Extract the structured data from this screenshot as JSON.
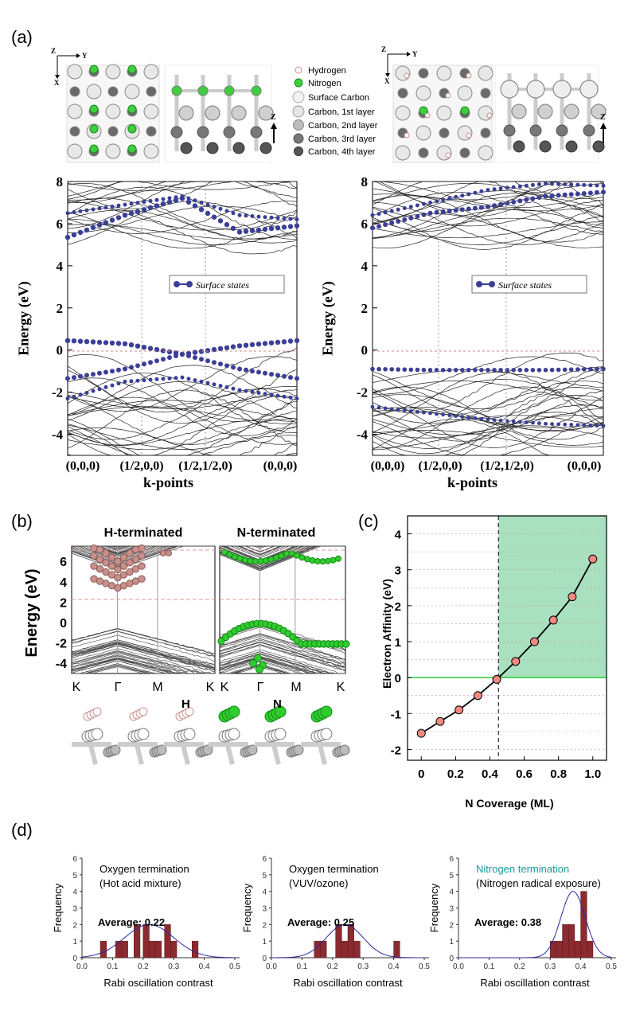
{
  "figure": {
    "panel_a": "(a)",
    "panel_b": "(b)",
    "panel_c": "(c)",
    "panel_d": "(d)"
  },
  "legend_a": {
    "items": [
      "Hydrogen",
      "Nitrogen",
      "Surface Carbon",
      "Carbon, 1st layer",
      "Carbon, 2nd layer",
      "Carbon, 3rd layer",
      "Carbon, 4th layer"
    ],
    "axes_zx": [
      "Z",
      "Y",
      "X"
    ],
    "axis_z": "Z"
  },
  "band_a": {
    "ylabel": "Energy (eV)",
    "xlabel": "k-points",
    "yticks": [
      "8",
      "6",
      "4",
      "2",
      "0",
      "-2",
      "-4"
    ],
    "kpoints": [
      "(0,0,0)",
      "(1/2,0,0)",
      "(1/2,1/2,0)",
      "(0,0,0)"
    ],
    "legend": "Surface states"
  },
  "band_b": {
    "left_title": "H-terminated",
    "right_title": "N-terminated",
    "ylabel": "Energy (eV)",
    "yticks": [
      "6",
      "4",
      "2",
      "0",
      "-2",
      "-4"
    ],
    "kpoints": [
      "K",
      "Γ",
      "M",
      "K"
    ],
    "atom_h": "H",
    "atom_n": "N"
  },
  "chart_data": [
    {
      "type": "line",
      "title": "",
      "xlabel": "N Coverage (ML)",
      "ylabel": "Electron Affinity (eV)",
      "x": [
        0.0,
        0.11,
        0.22,
        0.33,
        0.44,
        0.55,
        0.66,
        0.77,
        0.88,
        1.0
      ],
      "y": [
        -1.55,
        -1.22,
        -0.9,
        -0.5,
        -0.05,
        0.45,
        1.0,
        1.6,
        2.25,
        3.3
      ],
      "xlim": [
        -0.08,
        1.08
      ],
      "ylim": [
        -2.3,
        4.5
      ],
      "xticks": [
        "0",
        "0.2",
        "0.4",
        "0.6",
        "0.8",
        "1.0"
      ],
      "yticks": [
        "4",
        "3",
        "2",
        "1",
        "0",
        "-1",
        "-2"
      ],
      "threshold_x": 0.45
    },
    {
      "type": "bar",
      "title": "Oxygen termination",
      "subtitle": "(Hot acid mixture)",
      "average": "Average: 0.22",
      "xlabel": "Rabi oscillation contrast",
      "ylabel": "Frequency",
      "bins": [
        0.07,
        0.12,
        0.14,
        0.18,
        0.21,
        0.23,
        0.25,
        0.28,
        0.3,
        0.37
      ],
      "values": [
        1,
        1,
        1,
        2,
        2,
        1,
        1,
        2,
        1,
        1
      ],
      "fit_mean": 0.22,
      "fit_sd": 0.08,
      "fit_peak": 2.0,
      "xlim": [
        0.0,
        0.5
      ],
      "ylim": [
        0,
        6
      ]
    },
    {
      "type": "bar",
      "title": "Oxygen termination",
      "subtitle": "(VUV/ozone)",
      "average": "Average: 0.25",
      "xlabel": "Rabi oscillation contrast",
      "ylabel": "Frequency",
      "bins": [
        0.15,
        0.17,
        0.22,
        0.24,
        0.26,
        0.28,
        0.41
      ],
      "values": [
        1,
        1,
        2,
        1,
        2,
        1,
        1
      ],
      "fit_mean": 0.24,
      "fit_sd": 0.06,
      "fit_peak": 2.0,
      "xlim": [
        0.0,
        0.5
      ],
      "ylim": [
        0,
        6
      ]
    },
    {
      "type": "bar",
      "title": "Nitrogen termination",
      "subtitle": "(Nitrogen radical exposure)",
      "average": "Average: 0.38",
      "xlabel": "Rabi oscillation contrast",
      "ylabel": "Frequency",
      "bins": [
        0.31,
        0.33,
        0.35,
        0.37,
        0.39,
        0.41,
        0.43
      ],
      "values": [
        1,
        1,
        2,
        2,
        1,
        4,
        1
      ],
      "fit_mean": 0.375,
      "fit_sd": 0.04,
      "fit_peak": 4.0,
      "xlim": [
        0.0,
        0.5
      ],
      "ylim": [
        0,
        6
      ]
    }
  ],
  "hist_axes": {
    "xticks": [
      "0.0",
      "0.1",
      "0.2",
      "0.3",
      "0.4",
      "0.5"
    ],
    "yticks": [
      "0",
      "1",
      "2",
      "3",
      "4",
      "5",
      "6"
    ]
  },
  "colors": {
    "blue": "#3b3f96",
    "green": "#2fcc2f",
    "bar": "#8b2a30",
    "shade": "#a8e0c0",
    "pink": "#c98f8a"
  }
}
